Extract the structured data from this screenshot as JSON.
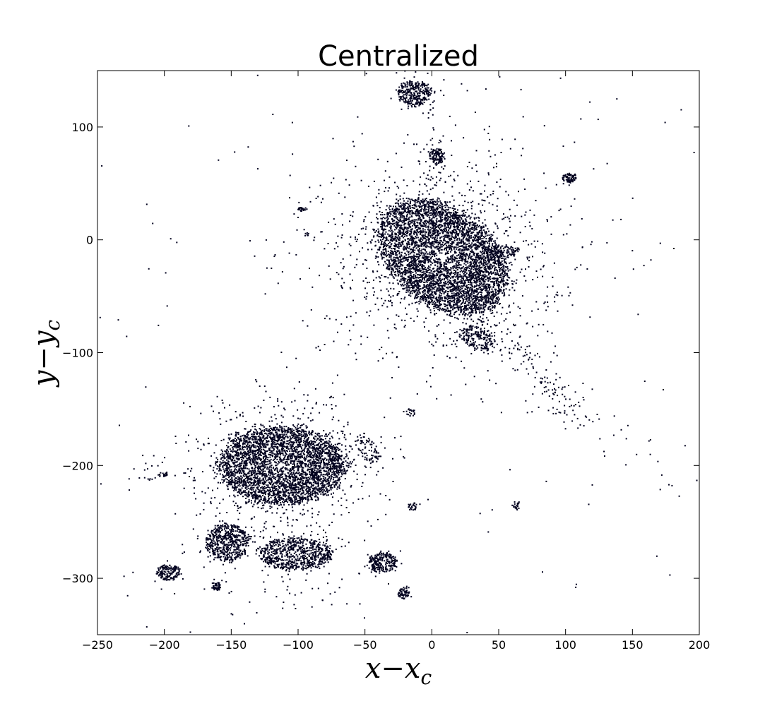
{
  "chart_data": {
    "type": "scatter",
    "title": "Centralized",
    "xlabel": "x−x",
    "xlabel_sub": "c",
    "ylabel": "y−y",
    "ylabel_sub": "c",
    "xlim": [
      -250,
      200
    ],
    "ylim": [
      -350,
      150
    ],
    "xticks": [
      -250,
      -200,
      -150,
      -100,
      -50,
      0,
      50,
      100,
      150,
      200
    ],
    "yticks": [
      -300,
      -200,
      -100,
      0,
      100
    ],
    "grid": false,
    "legend": "none",
    "point_color": "#02021e",
    "clusters": [
      {
        "cx": 8,
        "cy": -15,
        "sx": 22,
        "sy": 32,
        "rot": 40,
        "n": 4200,
        "halo_n": 1100,
        "halo_s": 45
      },
      {
        "cx": -112,
        "cy": -200,
        "sx": 26,
        "sy": 19,
        "rot": 0,
        "n": 3200,
        "halo_n": 700,
        "halo_s": 32
      },
      {
        "cx": -13,
        "cy": 130,
        "sx": 7,
        "sy": 6,
        "rot": 0,
        "n": 300,
        "halo_n": 30,
        "halo_s": 12
      },
      {
        "cx": 4,
        "cy": 74,
        "sx": 3,
        "sy": 4,
        "rot": 20,
        "n": 110,
        "halo_n": 15,
        "halo_s": 8
      },
      {
        "cx": 103,
        "cy": 55,
        "sx": 3,
        "sy": 2,
        "rot": 0,
        "n": 70,
        "halo_n": 5,
        "halo_s": 4
      },
      {
        "cx": -97,
        "cy": 27,
        "sx": 2,
        "sy": 1,
        "rot": 0,
        "n": 25,
        "halo_n": 0,
        "halo_s": 1
      },
      {
        "cx": 34,
        "cy": -87,
        "sx": 8,
        "sy": 5,
        "rot": -30,
        "n": 170,
        "halo_n": 20,
        "halo_s": 10
      },
      {
        "cx": 52,
        "cy": -10,
        "sx": 7,
        "sy": 3,
        "rot": 0,
        "n": 90,
        "halo_n": 10,
        "halo_s": 8
      },
      {
        "cx": -153,
        "cy": -268,
        "sx": 9,
        "sy": 9,
        "rot": 0,
        "n": 520,
        "halo_n": 40,
        "halo_s": 14
      },
      {
        "cx": -102,
        "cy": -278,
        "sx": 15,
        "sy": 8,
        "rot": 0,
        "n": 700,
        "halo_n": 120,
        "halo_s": 25
      },
      {
        "cx": -37,
        "cy": -286,
        "sx": 6,
        "sy": 5,
        "rot": 0,
        "n": 230,
        "halo_n": 15,
        "halo_s": 8
      },
      {
        "cx": -197,
        "cy": -295,
        "sx": 5,
        "sy": 4,
        "rot": 0,
        "n": 160,
        "halo_n": 10,
        "halo_s": 6
      },
      {
        "cx": -161,
        "cy": -307,
        "sx": 2,
        "sy": 2,
        "rot": 0,
        "n": 50,
        "halo_n": 6,
        "halo_s": 4
      },
      {
        "cx": -21,
        "cy": -313,
        "sx": 2.5,
        "sy": 3,
        "rot": 0,
        "n": 60,
        "halo_n": 6,
        "halo_s": 4
      },
      {
        "cx": -48,
        "cy": -186,
        "sx": 4,
        "sy": 8,
        "rot": 30,
        "n": 70,
        "halo_n": 25,
        "halo_s": 12
      },
      {
        "cx": -14,
        "cy": -236,
        "sx": 2,
        "sy": 2,
        "rot": 0,
        "n": 25,
        "halo_n": 3,
        "halo_s": 3
      },
      {
        "cx": 63,
        "cy": -236,
        "sx": 1.5,
        "sy": 2,
        "rot": 0,
        "n": 20,
        "halo_n": 2,
        "halo_s": 3
      },
      {
        "cx": -15,
        "cy": -153,
        "sx": 2,
        "sy": 2,
        "rot": 0,
        "n": 18,
        "halo_n": 3,
        "halo_s": 3
      },
      {
        "cx": -201,
        "cy": -208,
        "sx": 2,
        "sy": 1,
        "rot": 0,
        "n": 18,
        "halo_n": 12,
        "halo_s": 15
      },
      {
        "cx": -93,
        "cy": 5,
        "sx": 1,
        "sy": 1,
        "rot": 0,
        "n": 6,
        "halo_n": 4,
        "halo_s": 6
      }
    ],
    "tidal_streams": [
      {
        "from": [
          30,
          -60
        ],
        "to": [
          110,
          -160
        ],
        "n": 140,
        "spread": 7
      },
      {
        "from": [
          20,
          -60
        ],
        "to": [
          190,
          -225
        ],
        "n": 45,
        "spread": 10
      },
      {
        "from": [
          10,
          40
        ],
        "to": [
          -10,
          140
        ],
        "n": 45,
        "spread": 10
      },
      {
        "from": [
          -225,
          -210
        ],
        "to": [
          -180,
          -205
        ],
        "n": 14,
        "spread": 3
      }
    ],
    "background_n": 130
  }
}
